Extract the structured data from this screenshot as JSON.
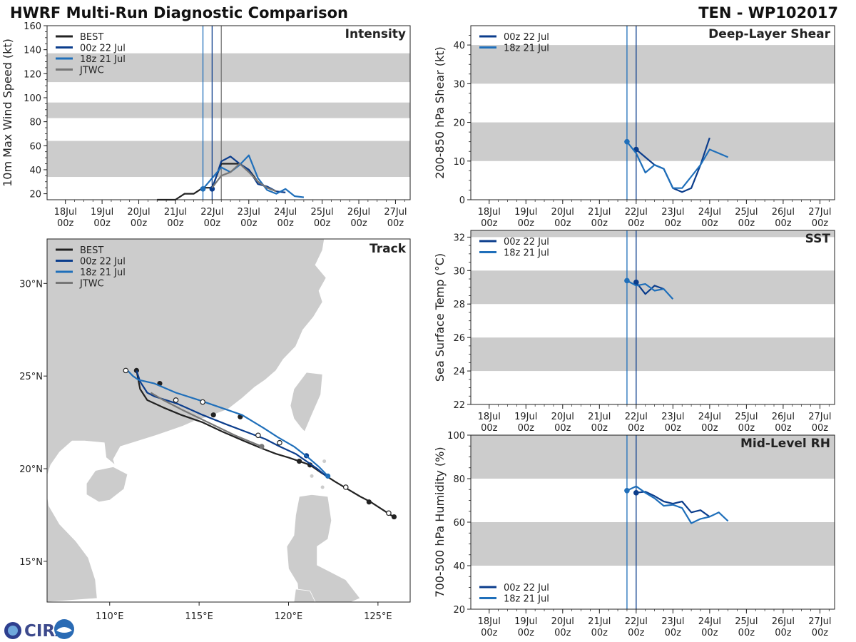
{
  "header": {
    "title": "HWRF Multi-Run Diagnostic Comparison",
    "storm": "TEN - WP102017"
  },
  "logo": {
    "text": "CIRA"
  },
  "colors": {
    "BEST": "#222222",
    "00z 22 Jul": "#0b3d8c",
    "18z 21 Jul": "#1f6fba",
    "JTWC": "#777777",
    "band": "#cccccc",
    "land": "#cccccc"
  },
  "chart_data": [
    {
      "id": "intensity",
      "type": "line",
      "title": "Intensity",
      "ylabel": "10m Max Wind Speed (kt)",
      "xlim": [
        0,
        9.9
      ],
      "ylim": [
        15,
        160
      ],
      "yticks": [
        20,
        40,
        60,
        80,
        100,
        120,
        140,
        160
      ],
      "xtick_values": [
        0.5,
        1.5,
        2.5,
        3.5,
        4.5,
        5.5,
        6.5,
        7.5,
        8.5,
        9.5
      ],
      "xticks": [
        "18Jul\n00z",
        "19Jul\n00z",
        "20Jul\n00z",
        "21Jul\n00z",
        "22Jul\n00z",
        "23Jul\n00z",
        "24Jul\n00z",
        "25Jul\n00z",
        "26Jul\n00z",
        "27Jul\n00z"
      ],
      "bands": [
        [
          34,
          64
        ],
        [
          83,
          96
        ],
        [
          113,
          137
        ]
      ],
      "vlines": [
        {
          "x": 4.25,
          "series": "18z 21 Jul"
        },
        {
          "x": 4.5,
          "series": "00z 22 Jul"
        },
        {
          "x": 4.75,
          "series": "JTWC"
        }
      ],
      "series": [
        {
          "name": "BEST",
          "x": [
            3.0,
            3.25,
            3.5,
            3.75,
            4.0,
            4.25,
            4.5,
            4.75,
            5.0,
            5.25,
            5.5,
            5.75,
            6.0,
            6.25
          ],
          "y": [
            15,
            15,
            15,
            20,
            20,
            25,
            25,
            45,
            45,
            45,
            40,
            30,
            25,
            22
          ]
        },
        {
          "name": "00z 22 Jul",
          "x": [
            4.5,
            4.75,
            5.0,
            5.25,
            5.5,
            5.75,
            6.0,
            6.25,
            6.5
          ],
          "y": [
            24,
            47,
            51,
            45,
            40,
            28,
            26,
            22,
            21
          ],
          "marker": [
            4.5,
            24
          ]
        },
        {
          "name": "18z 21 Jul",
          "x": [
            4.25,
            4.5,
            4.75,
            5.0,
            5.25,
            5.5,
            5.75,
            6.0,
            6.25,
            6.5,
            6.75,
            7.0
          ],
          "y": [
            24,
            33,
            42,
            38,
            44,
            52,
            33,
            23,
            20,
            24,
            18,
            17
          ],
          "marker": [
            4.25,
            24
          ]
        },
        {
          "name": "JTWC",
          "x": [
            4.5,
            4.75,
            5.0,
            5.25,
            5.5,
            5.75,
            6.0,
            6.25
          ],
          "y": [
            25,
            35,
            38,
            45,
            38,
            30,
            25,
            22
          ]
        }
      ],
      "legend": [
        "BEST",
        "00z 22 Jul",
        "18z 21 Jul",
        "JTWC"
      ]
    },
    {
      "id": "shear",
      "type": "line",
      "title": "Deep-Layer Shear",
      "ylabel": "200-850 hPa Shear (kt)",
      "xlim": [
        0,
        9.9
      ],
      "ylim": [
        0,
        45
      ],
      "yticks": [
        0,
        10,
        20,
        30,
        40
      ],
      "xtick_values": [
        0.5,
        1.5,
        2.5,
        3.5,
        4.5,
        5.5,
        6.5,
        7.5,
        8.5,
        9.5
      ],
      "xticks": [
        "18Jul\n00z",
        "19Jul\n00z",
        "20Jul\n00z",
        "21Jul\n00z",
        "22Jul\n00z",
        "23Jul\n00z",
        "24Jul\n00z",
        "25Jul\n00z",
        "26Jul\n00z",
        "27Jul\n00z"
      ],
      "bands": [
        [
          10,
          20
        ],
        [
          30,
          40
        ]
      ],
      "vlines": [
        {
          "x": 4.25,
          "series": "18z 21 Jul"
        },
        {
          "x": 4.5,
          "series": "00z 22 Jul"
        }
      ],
      "series": [
        {
          "name": "00z 22 Jul",
          "x": [
            4.5,
            4.75,
            5.0,
            5.25,
            5.5,
            5.75,
            6.0,
            6.25,
            6.5
          ],
          "y": [
            13,
            11,
            9,
            8,
            3,
            2,
            3,
            9,
            16
          ],
          "marker": [
            4.5,
            13
          ]
        },
        {
          "name": "18z 21 Jul",
          "x": [
            4.25,
            4.5,
            4.75,
            5.0,
            5.25,
            5.5,
            5.75,
            6.0,
            6.25,
            6.5,
            6.75,
            7.0
          ],
          "y": [
            15,
            12,
            7,
            9,
            8,
            3,
            3,
            6,
            9,
            13,
            12,
            11
          ],
          "marker": [
            4.25,
            15
          ]
        }
      ],
      "legend": [
        "00z 22 Jul",
        "18z 21 Jul"
      ]
    },
    {
      "id": "sst",
      "type": "line",
      "title": "SST",
      "ylabel": "Sea Surface Temp (°C)",
      "xlim": [
        0,
        9.9
      ],
      "ylim": [
        22,
        32.4
      ],
      "yticks": [
        22,
        24,
        26,
        28,
        30,
        32
      ],
      "xtick_values": [
        0.5,
        1.5,
        2.5,
        3.5,
        4.5,
        5.5,
        6.5,
        7.5,
        8.5,
        9.5
      ],
      "xticks": [
        "18Jul\n00z",
        "19Jul\n00z",
        "20Jul\n00z",
        "21Jul\n00z",
        "22Jul\n00z",
        "23Jul\n00z",
        "24Jul\n00z",
        "25Jul\n00z",
        "26Jul\n00z",
        "27Jul\n00z"
      ],
      "bands": [
        [
          24,
          26
        ],
        [
          28,
          30
        ],
        [
          32,
          32.4
        ]
      ],
      "vlines": [
        {
          "x": 4.25,
          "series": "18z 21 Jul"
        },
        {
          "x": 4.5,
          "series": "00z 22 Jul"
        }
      ],
      "series": [
        {
          "name": "00z 22 Jul",
          "x": [
            4.5,
            4.75,
            5.0,
            5.25
          ],
          "y": [
            29.3,
            28.6,
            29.1,
            28.9
          ],
          "marker": [
            4.5,
            29.3
          ]
        },
        {
          "name": "18z 21 Jul",
          "x": [
            4.25,
            4.5,
            4.75,
            5.0,
            5.25,
            5.5
          ],
          "y": [
            29.4,
            29.1,
            29.2,
            28.8,
            28.9,
            28.3
          ],
          "marker": [
            4.25,
            29.4
          ]
        }
      ],
      "legend": [
        "00z 22 Jul",
        "18z 21 Jul"
      ]
    },
    {
      "id": "rh",
      "type": "line",
      "title": "Mid-Level RH",
      "ylabel": "700-500 hPa Humidity (%)",
      "xlim": [
        0,
        9.9
      ],
      "ylim": [
        20,
        100
      ],
      "yticks": [
        20,
        40,
        60,
        80,
        100
      ],
      "xtick_values": [
        0.5,
        1.5,
        2.5,
        3.5,
        4.5,
        5.5,
        6.5,
        7.5,
        8.5,
        9.5
      ],
      "xticks": [
        "18Jul\n00z",
        "19Jul\n00z",
        "20Jul\n00z",
        "21Jul\n00z",
        "22Jul\n00z",
        "23Jul\n00z",
        "24Jul\n00z",
        "25Jul\n00z",
        "26Jul\n00z",
        "27Jul\n00z"
      ],
      "bands": [
        [
          40,
          60
        ],
        [
          80,
          100
        ]
      ],
      "vlines": [
        {
          "x": 4.25,
          "series": "18z 21 Jul"
        },
        {
          "x": 4.5,
          "series": "00z 22 Jul"
        }
      ],
      "series": [
        {
          "name": "00z 22 Jul",
          "x": [
            4.5,
            4.75,
            5.0,
            5.25,
            5.5,
            5.75,
            6.0,
            6.25,
            6.5
          ],
          "y": [
            73.5,
            74,
            72,
            69.5,
            68.5,
            69.5,
            64.5,
            65.5,
            62.5
          ],
          "marker": [
            4.5,
            73.5
          ]
        },
        {
          "name": "18z 21 Jul",
          "x": [
            4.25,
            4.5,
            4.75,
            5.0,
            5.25,
            5.5,
            5.75,
            6.0,
            6.25,
            6.5,
            6.75,
            7.0
          ],
          "y": [
            74.5,
            76.5,
            73.5,
            71,
            67.5,
            68,
            66.5,
            59.5,
            61.5,
            62.5,
            64.5,
            60.5
          ],
          "marker": [
            4.25,
            74.5
          ]
        }
      ],
      "legend": [
        "00z 22 Jul",
        "18z 21 Jul"
      ]
    },
    {
      "id": "track",
      "type": "line",
      "title": "Track",
      "lon_lim": [
        106.5,
        126.8
      ],
      "lat_lim": [
        12.8,
        32.4
      ],
      "lon_ticks": [
        110,
        115,
        120,
        125
      ],
      "lon_labels": [
        "110°E",
        "115°E",
        "120°E",
        "125°E"
      ],
      "lat_ticks": [
        15,
        20,
        25,
        30
      ],
      "lat_labels": [
        "15°N",
        "20°N",
        "25°N",
        "30°N"
      ],
      "series": [
        {
          "name": "BEST",
          "lon": [
            125.9,
            125.7,
            125.4,
            124.6,
            124.0,
            123.3,
            122.6,
            121.8,
            121.2,
            120.6,
            120.0,
            119.3,
            118.5,
            117.5,
            116.3,
            115.2,
            114.0,
            113.0,
            112.1,
            111.7,
            111.5
          ],
          "lat": [
            17.4,
            17.5,
            17.7,
            18.2,
            18.5,
            18.9,
            19.3,
            19.8,
            20.2,
            20.4,
            20.6,
            20.8,
            21.1,
            21.5,
            22.0,
            22.5,
            22.9,
            23.3,
            23.7,
            24.3,
            25.3
          ],
          "filled": [
            [
              125.9,
              17.4
            ],
            [
              124.5,
              18.2
            ],
            [
              120.6,
              20.4
            ],
            [
              121.2,
              20.2
            ],
            [
              117.3,
              22.8
            ],
            [
              115.8,
              22.9
            ],
            [
              112.8,
              24.6
            ],
            [
              111.5,
              25.3
            ]
          ],
          "open": [
            [
              125.6,
              17.6
            ],
            [
              123.2,
              19.0
            ]
          ]
        },
        {
          "name": "00z 22 Jul",
          "lon": [
            122.1,
            121.6,
            121.0,
            120.4,
            119.5,
            118.7,
            117.6,
            116.5,
            115.2,
            113.8,
            112.5,
            112.1,
            111.7,
            111.5
          ],
          "lat": [
            19.6,
            20.0,
            20.4,
            20.8,
            21.2,
            21.6,
            22.0,
            22.4,
            22.9,
            23.5,
            23.9,
            24.1,
            24.7,
            25.3
          ],
          "filled": [
            [
              121.0,
              20.7
            ]
          ]
        },
        {
          "name": "18z 21 Jul",
          "lon": [
            122.2,
            121.7,
            121.1,
            120.3,
            119.4,
            118.6,
            117.4,
            116.2,
            115.0,
            113.7,
            112.5,
            111.6,
            111.3,
            111.0
          ],
          "lat": [
            19.6,
            20.1,
            20.6,
            21.2,
            21.7,
            22.2,
            22.9,
            23.3,
            23.7,
            24.1,
            24.6,
            24.8,
            25.0,
            25.3
          ],
          "filled": [
            [
              122.2,
              19.6
            ]
          ],
          "open": [
            [
              119.5,
              21.4
            ],
            [
              115.2,
              23.6
            ],
            [
              110.9,
              25.3
            ]
          ]
        },
        {
          "name": "JTWC",
          "lon": [
            118.5,
            117.0,
            115.5,
            114.0,
            113.0,
            112.3
          ],
          "lat": [
            21.2,
            21.8,
            22.5,
            23.2,
            23.7,
            24.1
          ],
          "filled": [
            [
              118.5,
              21.2
            ]
          ],
          "open": [
            [
              113.7,
              23.7
            ],
            [
              118.3,
              21.8
            ]
          ]
        }
      ],
      "legend": [
        "BEST",
        "00z 22 Jul",
        "18z 21 Jul",
        "JTWC"
      ]
    }
  ]
}
